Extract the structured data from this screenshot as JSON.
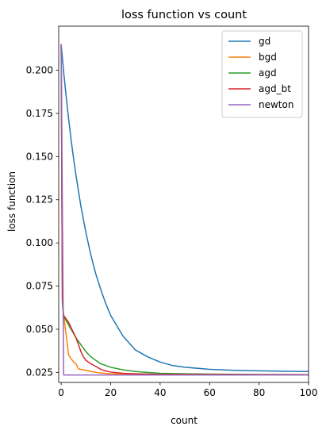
{
  "chart_data": {
    "type": "line",
    "title": "loss function vs count",
    "xlabel": "count",
    "ylabel": "loss function",
    "xlim": [
      -1,
      100
    ],
    "ylim": [
      0.0192,
      0.2255
    ],
    "xticks": [
      0,
      20,
      40,
      60,
      80,
      100
    ],
    "xtick_labels": [
      "0",
      "20",
      "40",
      "60",
      "80",
      "100"
    ],
    "yticks": [
      0.025,
      0.05,
      0.075,
      0.1,
      0.125,
      0.15,
      0.175,
      0.2
    ],
    "ytick_labels": [
      "0.025",
      "0.050",
      "0.075",
      "0.100",
      "0.125",
      "0.150",
      "0.175",
      "0.200"
    ],
    "grid": false,
    "legend_position": "top-right",
    "series": [
      {
        "name": "gd",
        "color": "#1f77b4",
        "points": [
          [
            0,
            0.215
          ],
          [
            1,
            0.199
          ],
          [
            2,
            0.185
          ],
          [
            3,
            0.172
          ],
          [
            4,
            0.16
          ],
          [
            5,
            0.149
          ],
          [
            6,
            0.139
          ],
          [
            8,
            0.121
          ],
          [
            10,
            0.106
          ],
          [
            12,
            0.093
          ],
          [
            14,
            0.082
          ],
          [
            16,
            0.073
          ],
          [
            18,
            0.065
          ],
          [
            20,
            0.058
          ],
          [
            25,
            0.046
          ],
          [
            30,
            0.038
          ],
          [
            35,
            0.034
          ],
          [
            40,
            0.031
          ],
          [
            45,
            0.029
          ],
          [
            50,
            0.028
          ],
          [
            60,
            0.0268
          ],
          [
            70,
            0.0262
          ],
          [
            80,
            0.0259
          ],
          [
            90,
            0.0257
          ],
          [
            100,
            0.0255
          ]
        ]
      },
      {
        "name": "bgd",
        "color": "#ff7f0e",
        "points": [
          [
            0,
            0.215
          ],
          [
            0.5,
            0.065
          ],
          [
            1,
            0.058
          ],
          [
            2,
            0.047
          ],
          [
            3,
            0.035
          ],
          [
            4,
            0.033
          ],
          [
            5,
            0.031
          ],
          [
            6,
            0.03
          ],
          [
            7,
            0.027
          ],
          [
            8,
            0.0268
          ],
          [
            10,
            0.0262
          ],
          [
            12,
            0.0255
          ],
          [
            15,
            0.0248
          ],
          [
            20,
            0.0242
          ],
          [
            30,
            0.0238
          ],
          [
            50,
            0.0237
          ],
          [
            100,
            0.0237
          ]
        ]
      },
      {
        "name": "agd",
        "color": "#2ca02c",
        "points": [
          [
            0,
            0.215
          ],
          [
            0.5,
            0.065
          ],
          [
            1,
            0.057
          ],
          [
            2,
            0.055
          ],
          [
            4,
            0.05
          ],
          [
            6,
            0.045
          ],
          [
            8,
            0.041
          ],
          [
            10,
            0.037
          ],
          [
            12,
            0.034
          ],
          [
            14,
            0.032
          ],
          [
            16,
            0.03
          ],
          [
            18,
            0.029
          ],
          [
            20,
            0.028
          ],
          [
            25,
            0.0265
          ],
          [
            30,
            0.0255
          ],
          [
            40,
            0.0245
          ],
          [
            50,
            0.0242
          ],
          [
            60,
            0.024
          ],
          [
            80,
            0.0238
          ],
          [
            100,
            0.0237
          ]
        ]
      },
      {
        "name": "agd_bt",
        "color": "#d62728",
        "points": [
          [
            0,
            0.215
          ],
          [
            0.5,
            0.068
          ],
          [
            1,
            0.058
          ],
          [
            2,
            0.056
          ],
          [
            3,
            0.054
          ],
          [
            4,
            0.051
          ],
          [
            5,
            0.048
          ],
          [
            6,
            0.045
          ],
          [
            7,
            0.041
          ],
          [
            8,
            0.037
          ],
          [
            9,
            0.034
          ],
          [
            10,
            0.032
          ],
          [
            12,
            0.03
          ],
          [
            14,
            0.0285
          ],
          [
            16,
            0.0268
          ],
          [
            18,
            0.0258
          ],
          [
            20,
            0.0252
          ],
          [
            25,
            0.0245
          ],
          [
            30,
            0.0242
          ],
          [
            40,
            0.0239
          ],
          [
            60,
            0.0238
          ],
          [
            100,
            0.0237
          ]
        ]
      },
      {
        "name": "newton",
        "color": "#9467bd",
        "points": [
          [
            0,
            0.215
          ],
          [
            0.5,
            0.12
          ],
          [
            1,
            0.0235
          ],
          [
            2,
            0.0235
          ],
          [
            100,
            0.0235
          ]
        ]
      }
    ]
  }
}
